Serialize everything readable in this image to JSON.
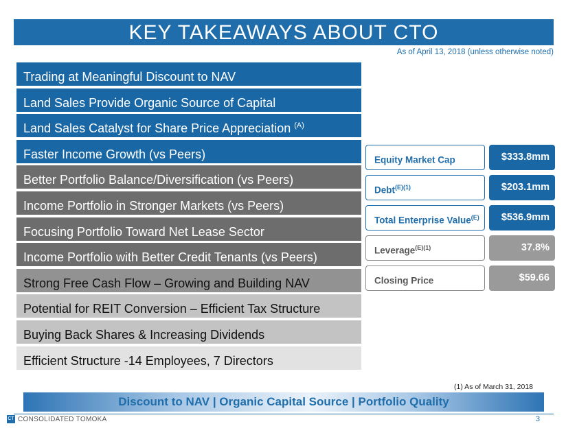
{
  "title": "KEY TAKEAWAYS ABOUT CTO",
  "as_of": "As of April 13, 2018 (unless otherwise noted)",
  "takeaways": [
    {
      "text": "Trading at Meaningful Discount to NAV",
      "sup": ""
    },
    {
      "text": "Land Sales Provide Organic Source of Capital",
      "sup": ""
    },
    {
      "text": "Land Sales Catalyst for Share Price Appreciation ",
      "sup": "(A)"
    },
    {
      "text": "Faster Income Growth  (vs Peers)",
      "sup": ""
    },
    {
      "text": "Better Portfolio Balance/Diversification   (vs Peers)",
      "sup": ""
    },
    {
      "text": "Income Portfolio in Stronger Markets  (vs Peers)",
      "sup": ""
    },
    {
      "text": "Focusing Portfolio Toward Net Lease Sector",
      "sup": ""
    },
    {
      "text": "Income Portfolio with Better Credit Tenants  (vs Peers)",
      "sup": ""
    },
    {
      "text": "Strong Free Cash Flow – Growing and Building NAV",
      "sup": ""
    },
    {
      "text": "Potential for REIT Conversion – Efficient Tax Structure",
      "sup": ""
    },
    {
      "text": "Buying Back Shares & Increasing Dividends",
      "sup": ""
    },
    {
      "text": "Efficient Structure -14 Employees, 7 Directors",
      "sup": ""
    }
  ],
  "metrics": [
    {
      "label": "Equity Market Cap",
      "sup": "",
      "value": "$333.8mm"
    },
    {
      "label": "Debt",
      "sup": "(E)(1)",
      "value": "$203.1mm"
    },
    {
      "label": "Total Enterprise Value",
      "sup": "(E)",
      "value": "$536.9mm"
    },
    {
      "label": "Leverage",
      "sup": "(E)(1)",
      "value": "37.8%"
    },
    {
      "label": "Closing Price",
      "sup": "",
      "value": "$59.66"
    }
  ],
  "footnote": "(1) As of March 31, 2018",
  "banner": "Discount to NAV | Organic Capital Source | Portfolio Quality",
  "company": "CONSOLIDATED TOMOKA",
  "logo_mark": "CT",
  "page_number": "3",
  "colors": {
    "brand_blue": "#1f6eab"
  }
}
